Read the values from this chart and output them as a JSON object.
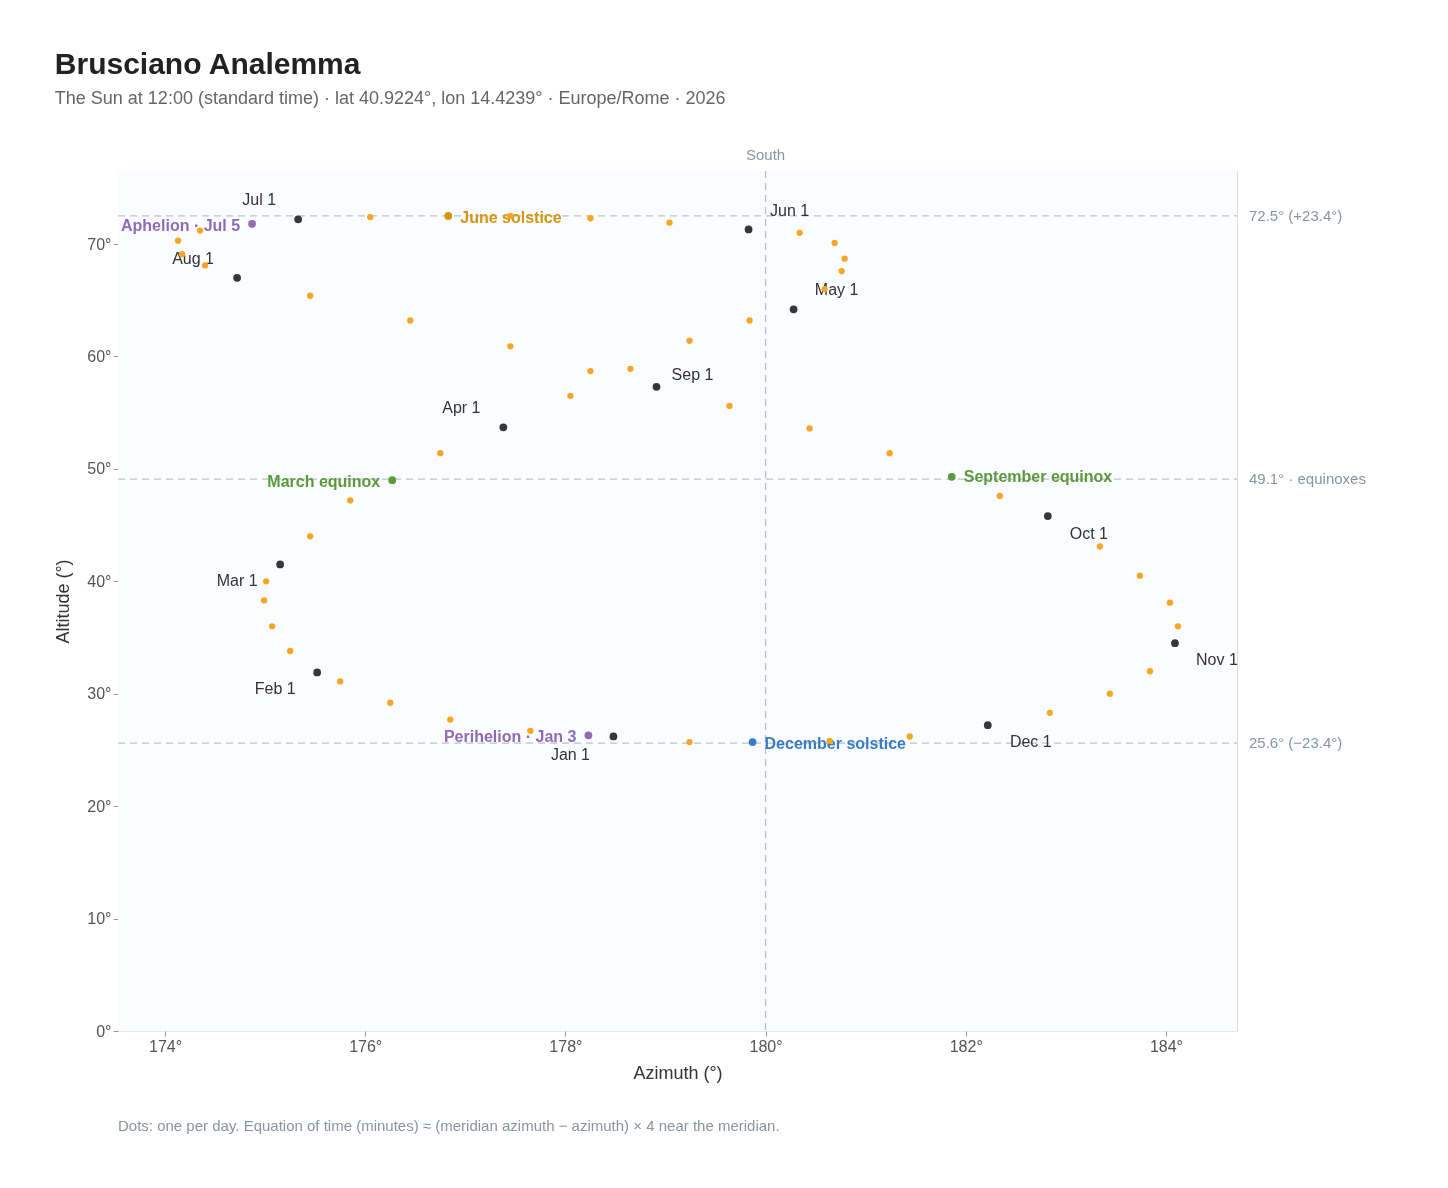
{
  "chart_data": {
    "type": "scatter",
    "title": "Brusciano Analemma",
    "subtitle": "The Sun at 12:00 (standard time) · lat 40.9224°, lon 14.4239° · Europe/Rome · 2026",
    "xlabel": "Azimuth (°)",
    "ylabel": "Altitude (°)",
    "xlim": [
      173.53,
      184.71
    ],
    "ylim": [
      0,
      76.5
    ],
    "xticks": [
      {
        "value": 174,
        "label": "174°"
      },
      {
        "value": 176,
        "label": "176°"
      },
      {
        "value": 178,
        "label": "178°"
      },
      {
        "value": 180,
        "label": "180°"
      },
      {
        "value": 182,
        "label": "182°"
      },
      {
        "value": 184,
        "label": "184°"
      }
    ],
    "yticks": [
      {
        "value": 0,
        "label": "0°"
      },
      {
        "value": 10,
        "label": "10°"
      },
      {
        "value": 20,
        "label": "20°"
      },
      {
        "value": 30,
        "label": "30°"
      },
      {
        "value": 40,
        "label": "40°"
      },
      {
        "value": 50,
        "label": "50°"
      },
      {
        "value": 60,
        "label": "60°"
      },
      {
        "value": 70,
        "label": "70°"
      }
    ],
    "grid": true,
    "marker": "circle",
    "series": [
      {
        "color": "#f5a623",
        "x": [
          177.65,
          176.85,
          176.25,
          175.75,
          175.25,
          175.07,
          174.99,
          175.01,
          175.45,
          175.85,
          176.75,
          178.05,
          178.65,
          179.24,
          179.84,
          180.59,
          180.76,
          180.79,
          180.69,
          180.34,
          179.04,
          178.25,
          177.45,
          176.05,
          174.35,
          174.13,
          174.17,
          174.4,
          175.45,
          176.45,
          177.45,
          178.25,
          179.64,
          180.44,
          181.24,
          182.34,
          183.34,
          183.74,
          184.04,
          184.12,
          183.84,
          183.44,
          182.84,
          181.44,
          180.64,
          179.24
        ],
        "values": [
          26.7,
          27.7,
          29.2,
          31.1,
          33.8,
          36.0,
          38.3,
          40.0,
          44.0,
          47.2,
          51.4,
          56.5,
          58.9,
          61.4,
          63.2,
          66.0,
          67.6,
          68.7,
          70.1,
          71.0,
          71.9,
          72.3,
          72.5,
          72.4,
          71.2,
          70.3,
          69.1,
          68.1,
          65.4,
          63.2,
          60.9,
          58.7,
          55.6,
          53.6,
          51.4,
          47.6,
          43.1,
          40.5,
          38.1,
          36.0,
          32.0,
          30.0,
          28.3,
          26.2,
          25.8,
          25.7
        ]
      },
      {
        "color": "#33383d",
        "x": [
          178.48,
          175.52,
          175.15,
          177.38,
          180.28,
          179.83,
          175.33,
          174.72,
          178.91,
          182.82,
          184.09,
          182.22
        ],
        "values": [
          26.2,
          31.9,
          41.5,
          53.7,
          64.2,
          71.3,
          72.2,
          67.0,
          57.3,
          45.8,
          34.5,
          27.2
        ],
        "value_labels": [
          "Jan 1",
          "Feb 1",
          "Mar 1",
          "Apr 1",
          "May 1",
          "Jun 1",
          "Jul 1",
          "Aug 1",
          "Sep 1",
          "Oct 1",
          "Nov 1",
          "Dec 1"
        ]
      },
      {
        "color": "#8e6bb8",
        "x": [
          178.23,
          174.87
        ],
        "values": [
          26.3,
          71.8
        ],
        "value_labels": [
          "Perihelion · Jan 3",
          "Aphelion · Jul 5"
        ]
      },
      {
        "color": "#d4950f",
        "x": [
          176.83
        ],
        "values": [
          72.5
        ],
        "value_labels": [
          "June solstice"
        ]
      },
      {
        "color": "#5a9a3a",
        "x": [
          176.27,
          181.86
        ],
        "values": [
          49.0,
          49.3
        ],
        "value_labels": [
          "March equinox",
          "September equinox"
        ]
      },
      {
        "color": "#3a7cc4",
        "x": [
          179.87
        ],
        "values": [
          25.7
        ],
        "value_labels": [
          "December solstice"
        ]
      }
    ],
    "ref_lines": [
      {
        "axis": "y",
        "value": 72.5,
        "label": "72.5° (+23.4°)",
        "color": "#b9c2cc",
        "line_style": "dashed"
      },
      {
        "axis": "y",
        "value": 49.1,
        "label": "49.1° · equinoxes",
        "color": "#b9c2cc",
        "line_style": "dashed"
      },
      {
        "axis": "y",
        "value": 25.6,
        "label": "25.6° (−23.4°)",
        "color": "#b9c2cc",
        "line_style": "dashed"
      },
      {
        "axis": "x",
        "value": 180,
        "label": "South",
        "color": "#b9c2cc",
        "line_style": "dashed"
      }
    ],
    "annotations": [
      "Dots: one per day. Equation of time (minutes) ≈ (meridian azimuth − azimuth) × 4 near the meridian."
    ]
  }
}
